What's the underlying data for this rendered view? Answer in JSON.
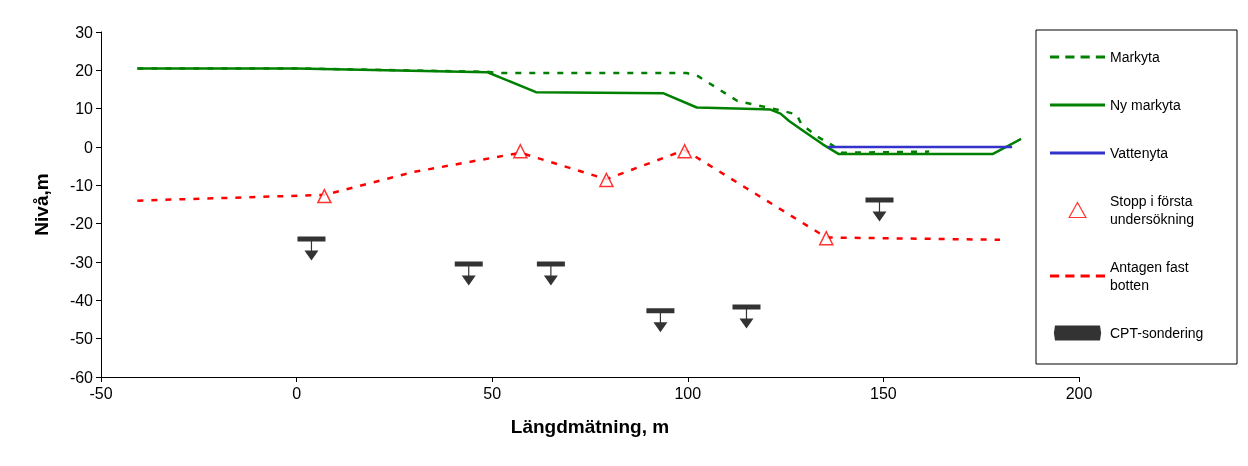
{
  "chart_data": {
    "type": "line",
    "xlabel": "Längdmätning, m",
    "ylabel": "Nivå,m",
    "xlim": [
      -50,
      200
    ],
    "xticks": [
      -50,
      0,
      50,
      100,
      150,
      200
    ],
    "ylim": [
      -60,
      30
    ],
    "yticks": [
      -60,
      -50,
      -40,
      -30,
      -20,
      -10,
      0,
      10,
      20,
      30
    ],
    "grid": false,
    "legend": "right",
    "series": [
      {
        "name": "Markyta",
        "color": "#008000",
        "line_style": "dashed",
        "marker": "none",
        "x": [
          -40.7,
          0,
          48.8,
          52,
          99.7,
          102.6,
          112.7,
          122.7,
          127.8,
          129,
          133,
          136.9,
          139.5,
          161.7
        ],
        "values": [
          20.5,
          20.5,
          19.6,
          19.3,
          19.3,
          18.5,
          12,
          9.8,
          8.5,
          6,
          2.8,
          0.5,
          -1.5,
          -1.2
        ]
      },
      {
        "name": "Ny markyta",
        "color": "#008000",
        "line_style": "solid",
        "marker": "none",
        "x": [
          -40.7,
          0,
          48.8,
          61.2,
          93.8,
          102.3,
          121,
          123.7,
          125.9,
          129.1,
          134.5,
          138.5,
          178,
          185.2
        ],
        "values": [
          20.5,
          20.5,
          19.5,
          14.3,
          14,
          10.3,
          9.8,
          8.7,
          6.8,
          4.5,
          0.7,
          -1.8,
          -1.8,
          2.1
        ]
      },
      {
        "name": "Vattenyta",
        "color": "#3333cc",
        "line_style": "solid",
        "marker": "none",
        "x": [
          135.8,
          182.9
        ],
        "values": [
          0,
          0
        ]
      },
      {
        "name": "Stopp i första undersökning",
        "type": "scatter",
        "color": "#ff0000",
        "marker": "triangle",
        "x": [
          7.1,
          57.2,
          79.2,
          99.2,
          135.4
        ],
        "values": [
          -12.8,
          -1.1,
          -8.6,
          -1.1,
          -23.8
        ]
      },
      {
        "name": "Antagen fast botten",
        "color": "#ff0000",
        "line_style": "dashed",
        "marker": "none",
        "x": [
          -40.7,
          3.7,
          7.1,
          30,
          57.2,
          79.2,
          99.2,
          135.4,
          179.8
        ],
        "values": [
          -14,
          -12.6,
          -12.5,
          -6.5,
          -1.5,
          -8.4,
          -0.8,
          -23.6,
          -24.2
        ]
      },
      {
        "name": "CPT-sondering",
        "type": "scatter",
        "color": "#000000",
        "x": [
          3.8,
          44,
          65,
          93,
          115,
          149
        ],
        "values": [
          -26.5,
          -33,
          -33,
          -45.2,
          -44.2,
          -16.3
        ]
      }
    ]
  }
}
